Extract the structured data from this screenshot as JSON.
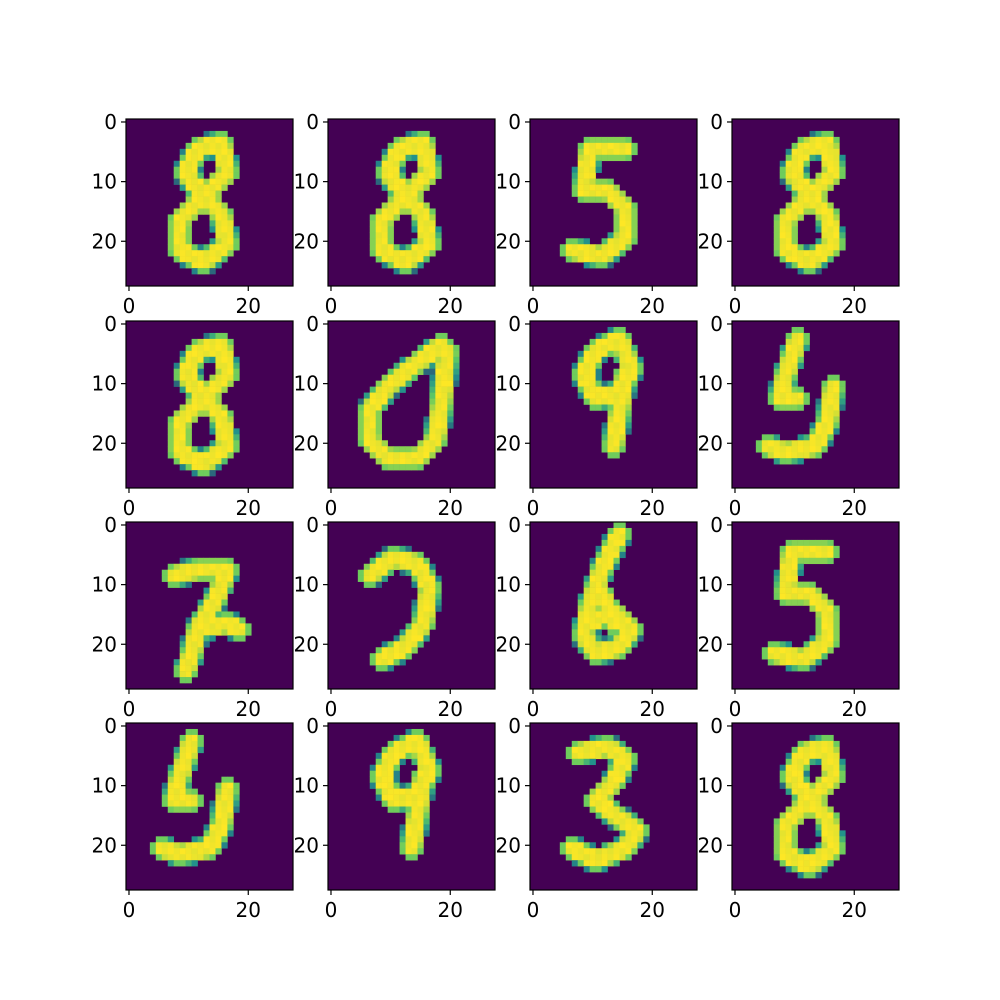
{
  "figure": {
    "background": "#ffffff"
  },
  "colors": {
    "background": "#440154",
    "stroke_mid": "#21918c",
    "stroke_edge": "#5ec962",
    "stroke": "#fde725",
    "axis": "#000000"
  },
  "chart_data": {
    "type": "image-grid",
    "title": "",
    "rows": 4,
    "cols": 4,
    "image_size": [
      28,
      28
    ],
    "colormap": "viridis",
    "x_ticks": [
      "0",
      "20"
    ],
    "y_ticks": [
      "0",
      "10",
      "20"
    ],
    "x_tick_values": [
      0,
      20
    ],
    "y_tick_values": [
      0,
      10,
      20
    ],
    "panels": [
      {
        "row": 0,
        "col": 0,
        "digit": "8"
      },
      {
        "row": 0,
        "col": 1,
        "digit": "8"
      },
      {
        "row": 0,
        "col": 2,
        "digit": "5"
      },
      {
        "row": 0,
        "col": 3,
        "digit": "8"
      },
      {
        "row": 1,
        "col": 0,
        "digit": "8"
      },
      {
        "row": 1,
        "col": 1,
        "digit": "0"
      },
      {
        "row": 1,
        "col": 2,
        "digit": "9"
      },
      {
        "row": 1,
        "col": 3,
        "digit": "4"
      },
      {
        "row": 2,
        "col": 0,
        "digit": "7"
      },
      {
        "row": 2,
        "col": 1,
        "digit": "2"
      },
      {
        "row": 2,
        "col": 2,
        "digit": "6"
      },
      {
        "row": 2,
        "col": 3,
        "digit": "5"
      },
      {
        "row": 3,
        "col": 0,
        "digit": "4"
      },
      {
        "row": 3,
        "col": 1,
        "digit": "9"
      },
      {
        "row": 3,
        "col": 2,
        "digit": "3"
      },
      {
        "row": 3,
        "col": 3,
        "digit": "8"
      }
    ]
  }
}
